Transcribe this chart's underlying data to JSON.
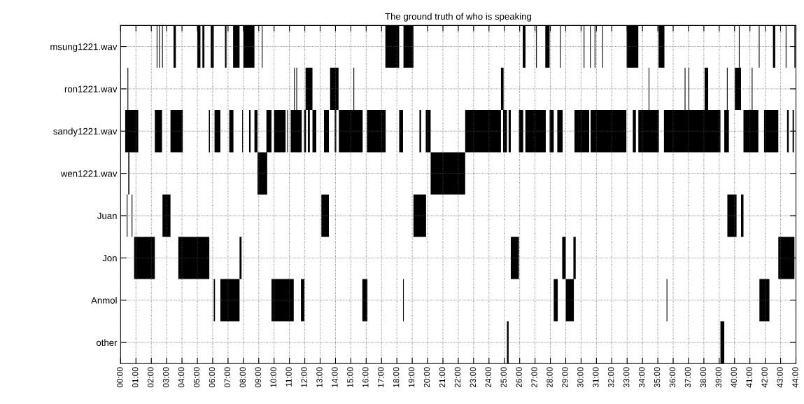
{
  "chart_data": {
    "type": "bar",
    "orientation": "horizontal",
    "title": "The ground truth of who is speaking",
    "categories": [
      "msung1221.wav",
      "ron1221.wav",
      "sandy1221.wav",
      "wen1221.wav",
      "Juan",
      "Jon",
      "Anmol",
      "other"
    ],
    "xlim": [
      0,
      44
    ],
    "xticks": [
      {
        "value": 0,
        "label": "00:00"
      },
      {
        "value": 1,
        "label": "01:00"
      },
      {
        "value": 2,
        "label": "02:00"
      },
      {
        "value": 3,
        "label": "03:00"
      },
      {
        "value": 4,
        "label": "04:00"
      },
      {
        "value": 5,
        "label": "05:00"
      },
      {
        "value": 6,
        "label": "06:00"
      },
      {
        "value": 7,
        "label": "07:00"
      },
      {
        "value": 8,
        "label": "08:00"
      },
      {
        "value": 9,
        "label": "09:00"
      },
      {
        "value": 10,
        "label": "10:00"
      },
      {
        "value": 11,
        "label": "11:00"
      },
      {
        "value": 12,
        "label": "12:00"
      },
      {
        "value": 13,
        "label": "13:00"
      },
      {
        "value": 14,
        "label": "14:00"
      },
      {
        "value": 15,
        "label": "15:00"
      },
      {
        "value": 16,
        "label": "16:00"
      },
      {
        "value": 17,
        "label": "17:00"
      },
      {
        "value": 18,
        "label": "18:00"
      },
      {
        "value": 19,
        "label": "19:00"
      },
      {
        "value": 20,
        "label": "20:00"
      },
      {
        "value": 21,
        "label": "21:00"
      },
      {
        "value": 22,
        "label": "22:00"
      },
      {
        "value": 23,
        "label": "23:00"
      },
      {
        "value": 24,
        "label": "24:00"
      },
      {
        "value": 25,
        "label": "25:00"
      },
      {
        "value": 26,
        "label": "26:00"
      },
      {
        "value": 27,
        "label": "27:00"
      },
      {
        "value": 28,
        "label": "28:00"
      },
      {
        "value": 29,
        "label": "29:00"
      },
      {
        "value": 30,
        "label": "30:00"
      },
      {
        "value": 31,
        "label": "31:00"
      },
      {
        "value": 32,
        "label": "32:00"
      },
      {
        "value": 33,
        "label": "33:00"
      },
      {
        "value": 34,
        "label": "34:00"
      },
      {
        "value": 35,
        "label": "35:00"
      },
      {
        "value": 36,
        "label": "36:00"
      },
      {
        "value": 37,
        "label": "37:00"
      },
      {
        "value": 38,
        "label": "38:00"
      },
      {
        "value": 39,
        "label": "39:00"
      },
      {
        "value": 40,
        "label": "40:00"
      },
      {
        "value": 41,
        "label": "41:00"
      },
      {
        "value": 42,
        "label": "42:00"
      },
      {
        "value": 43,
        "label": "43:00"
      },
      {
        "value": 44,
        "label": "44:00"
      }
    ],
    "grid": true,
    "line_style": "dotted",
    "series": [
      {
        "color": "#000000",
        "base": [
          2.35,
          0.45,
          0.3,
          0.5,
          0.4,
          0.88,
          6.07,
          25.17
        ],
        "values": [
          0.05,
          0.05,
          0.85,
          0.07,
          0.05,
          1.35,
          0.08,
          0.11
        ]
      },
      {
        "color": "#000000",
        "base": [
          2.5,
          11.3,
          2.23,
          8.92,
          0.72,
          3.76,
          6.5,
          39.08
        ],
        "values": [
          0.05,
          0.05,
          0.47,
          0.63,
          0.05,
          2.02,
          1.25,
          0.25
        ]
      },
      {
        "color": "#000000",
        "base": [
          2.7,
          11.45,
          3.25,
          20.2,
          2.73,
          7.75,
          9.83,
          null
        ],
        "values": [
          0.05,
          0.05,
          0.8,
          2.25,
          0.52,
          0.13,
          1.45,
          null
        ]
      },
      {
        "color": "#000000",
        "base": [
          3.45,
          12.05,
          5.75,
          null,
          13.08,
          25.42,
          11.75,
          null
        ],
        "values": [
          0.15,
          0.45,
          0.07,
          null,
          0.49,
          0.53,
          0.22,
          null
        ]
      },
      {
        "color": "#000000",
        "base": [
          5.0,
          13.65,
          6.12,
          null,
          19.08,
          28.77,
          15.75,
          null
        ],
        "values": [
          0.2,
          0.55,
          0.38,
          null,
          0.82,
          0.23,
          0.33,
          null
        ]
      },
      {
        "color": "#000000",
        "base": [
          5.33,
          15.17,
          7.08,
          null,
          39.53,
          29.5,
          18.4,
          null
        ],
        "values": [
          0.13,
          0.05,
          0.27,
          null,
          0.6,
          0.15,
          0.05,
          null
        ]
      },
      {
        "color": "#000000",
        "base": [
          5.87,
          24.78,
          7.92,
          null,
          40.42,
          42.85,
          28.22,
          null
        ],
        "values": [
          0.2,
          0.17,
          0.05,
          null,
          0.16,
          1.05,
          0.26,
          null
        ]
      },
      {
        "color": "#000000",
        "base": [
          6.8,
          34.4,
          8.37,
          null,
          null,
          null,
          29.0,
          null
        ],
        "values": [
          0.1,
          0.05,
          0.1,
          null,
          null,
          null,
          0.53,
          null
        ]
      },
      {
        "color": "#000000",
        "base": [
          7.33,
          36.75,
          8.72,
          null,
          null,
          null,
          35.57,
          null
        ],
        "values": [
          0.42,
          0.05,
          0.2,
          null,
          null,
          null,
          0.05,
          null
        ]
      },
      {
        "color": "#000000",
        "base": [
          8.0,
          37.0,
          9.5,
          null,
          null,
          null,
          41.62,
          null
        ],
        "values": [
          0.72,
          0.05,
          0.33,
          null,
          null,
          null,
          0.65,
          null
        ]
      },
      {
        "color": "#000000",
        "base": [
          9.2,
          38.05,
          10.0,
          null,
          null,
          null,
          null,
          null
        ],
        "values": [
          0.05,
          0.23,
          0.75,
          null,
          null,
          null,
          null,
          null
        ]
      },
      {
        "color": "#000000",
        "base": [
          17.25,
          39.5,
          10.85,
          null,
          null,
          null,
          null,
          null
        ],
        "values": [
          0.9,
          0.05,
          0.05,
          null,
          null,
          null,
          null,
          null
        ]
      },
      {
        "color": "#000000",
        "base": [
          18.43,
          40.02,
          11.08,
          null,
          null,
          null,
          null,
          null
        ],
        "values": [
          0.65,
          0.4,
          0.72,
          null,
          null,
          null,
          null,
          null
        ]
      },
      {
        "color": "#000000",
        "base": [
          26.2,
          41.12,
          11.95,
          null,
          null,
          null,
          null,
          null
        ],
        "values": [
          0.18,
          0.05,
          0.13,
          null,
          null,
          null,
          null,
          null
        ]
      },
      {
        "color": "#000000",
        "base": [
          27.07,
          null,
          12.2,
          null,
          null,
          null,
          null,
          null
        ],
        "values": [
          0.05,
          null,
          0.13,
          null,
          null,
          null,
          null,
          null
        ]
      },
      {
        "color": "#000000",
        "base": [
          27.67,
          null,
          12.5,
          null,
          null,
          null,
          null,
          null
        ],
        "values": [
          0.28,
          null,
          0.25,
          null,
          null,
          null,
          null,
          null
        ]
      },
      {
        "color": "#000000",
        "base": [
          28.62,
          null,
          13.25,
          null,
          null,
          null,
          null,
          null
        ],
        "values": [
          0.05,
          null,
          0.32,
          null,
          null,
          null,
          null,
          null
        ]
      },
      {
        "color": "#000000",
        "base": [
          30.17,
          null,
          13.95,
          null,
          null,
          null,
          null,
          null
        ],
        "values": [
          0.05,
          null,
          0.1,
          null,
          null,
          null,
          null,
          null
        ]
      },
      {
        "color": "#000000",
        "base": [
          30.58,
          null,
          14.22,
          null,
          null,
          null,
          null,
          null
        ],
        "values": [
          0.05,
          null,
          1.55,
          null,
          null,
          null,
          null,
          null
        ]
      },
      {
        "color": "#000000",
        "base": [
          30.88,
          null,
          16.05,
          null,
          null,
          null,
          null,
          null
        ],
        "values": [
          0.05,
          null,
          1.22,
          null,
          null,
          null,
          null,
          null
        ]
      },
      {
        "color": "#000000",
        "base": [
          31.38,
          null,
          18.15,
          null,
          null,
          null,
          null,
          null
        ],
        "values": [
          0.05,
          null,
          0.25,
          null,
          null,
          null,
          null,
          null
        ]
      },
      {
        "color": "#000000",
        "base": [
          32.97,
          null,
          19.47,
          null,
          null,
          null,
          null,
          null
        ],
        "values": [
          0.76,
          null,
          0.11,
          null,
          null,
          null,
          null,
          null
        ]
      },
      {
        "color": "#000000",
        "base": [
          35.05,
          null,
          19.88,
          null,
          null,
          null,
          null,
          null
        ],
        "values": [
          0.38,
          null,
          0.32,
          null,
          null,
          null,
          null,
          null
        ]
      },
      {
        "color": "#000000",
        "base": [
          40.28,
          null,
          22.45,
          null,
          null,
          null,
          null,
          null
        ],
        "values": [
          0.05,
          null,
          2.33,
          null,
          null,
          null,
          null,
          null
        ]
      },
      {
        "color": "#000000",
        "base": [
          41.58,
          null,
          24.92,
          null,
          null,
          null,
          null,
          null
        ],
        "values": [
          0.05,
          null,
          0.25,
          null,
          null,
          null,
          null,
          null
        ]
      },
      {
        "color": "#000000",
        "base": [
          42.5,
          null,
          25.28,
          null,
          null,
          null,
          null,
          null
        ],
        "values": [
          0.15,
          null,
          0.14,
          null,
          null,
          null,
          null,
          null
        ]
      },
      {
        "color": "#000000",
        "base": [
          43.33,
          null,
          25.95,
          null,
          null,
          null,
          null,
          null
        ],
        "values": [
          0.05,
          null,
          0.28,
          null,
          null,
          null,
          null,
          null
        ]
      },
      {
        "color": "#000000",
        "base": [
          43.9,
          null,
          26.37,
          null,
          null,
          null,
          null,
          null
        ],
        "values": [
          0.06,
          null,
          1.33,
          null,
          null,
          null,
          null,
          null
        ]
      },
      {
        "color": "#000000",
        "base": [
          null,
          null,
          27.95,
          null,
          null,
          null,
          null,
          null
        ],
        "values": [
          null,
          null,
          0.27,
          null,
          null,
          null,
          null,
          null
        ]
      },
      {
        "color": "#000000",
        "base": [
          null,
          null,
          28.45,
          null,
          null,
          null,
          null,
          null
        ],
        "values": [
          null,
          null,
          0.35,
          null,
          null,
          null,
          null,
          null
        ]
      },
      {
        "color": "#000000",
        "base": [
          null,
          null,
          29.57,
          null,
          null,
          null,
          null,
          null
        ],
        "values": [
          null,
          null,
          0.96,
          null,
          null,
          null,
          null,
          null
        ]
      },
      {
        "color": "#000000",
        "base": [
          null,
          null,
          30.62,
          null,
          null,
          null,
          null,
          null
        ],
        "values": [
          null,
          null,
          2.33,
          null,
          null,
          null,
          null,
          null
        ]
      },
      {
        "color": "#000000",
        "base": [
          null,
          null,
          33.37,
          null,
          null,
          null,
          null,
          null
        ],
        "values": [
          null,
          null,
          0.2,
          null,
          null,
          null,
          null,
          null
        ]
      },
      {
        "color": "#000000",
        "base": [
          null,
          null,
          33.73,
          null,
          null,
          null,
          null,
          null
        ],
        "values": [
          null,
          null,
          1.34,
          null,
          null,
          null,
          null,
          null
        ]
      },
      {
        "color": "#000000",
        "base": [
          null,
          null,
          35.4,
          null,
          null,
          null,
          null,
          null
        ],
        "values": [
          null,
          null,
          3.68,
          null,
          null,
          null,
          null,
          null
        ]
      },
      {
        "color": "#000000",
        "base": [
          null,
          null,
          39.33,
          null,
          null,
          null,
          null,
          null
        ],
        "values": [
          null,
          null,
          0.3,
          null,
          null,
          null,
          null,
          null
        ]
      },
      {
        "color": "#000000",
        "base": [
          null,
          null,
          40.58,
          null,
          null,
          null,
          null,
          null
        ],
        "values": [
          null,
          null,
          0.97,
          null,
          null,
          null,
          null,
          null
        ]
      },
      {
        "color": "#000000",
        "base": [
          null,
          null,
          41.92,
          null,
          null,
          null,
          null,
          null
        ],
        "values": [
          null,
          null,
          0.93,
          null,
          null,
          null,
          null,
          null
        ]
      },
      {
        "color": "#000000",
        "base": [
          null,
          null,
          43.42,
          null,
          null,
          null,
          null,
          null
        ],
        "values": [
          null,
          null,
          0.11,
          null,
          null,
          null,
          null,
          null
        ]
      },
      {
        "color": "#000000",
        "base": [
          null,
          null,
          43.78,
          null,
          null,
          null,
          null,
          null
        ],
        "values": [
          null,
          null,
          0.09,
          null,
          null,
          null,
          null,
          null
        ]
      }
    ]
  }
}
